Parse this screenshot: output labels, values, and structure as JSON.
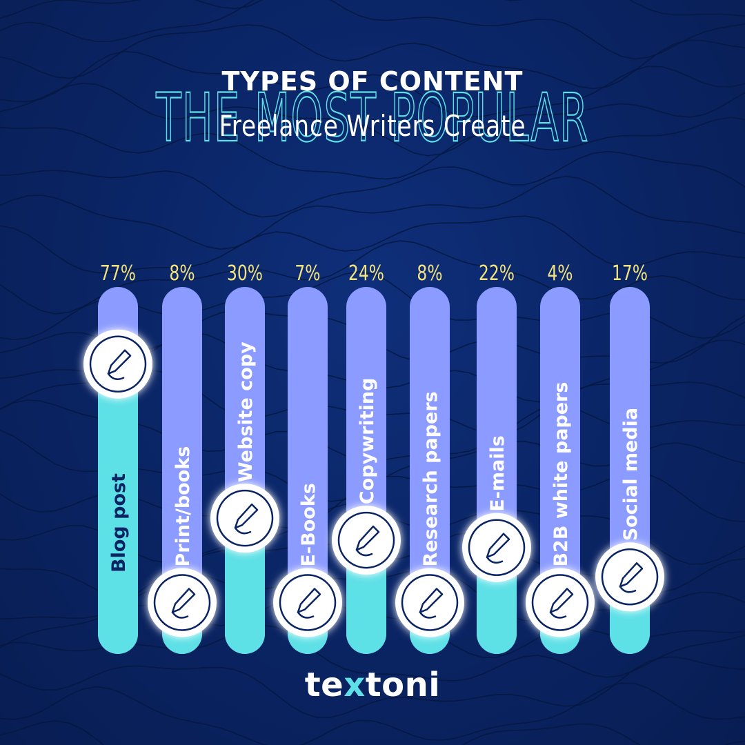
{
  "chart_data": {
    "type": "bar",
    "title": "THE MOST POPULAR",
    "subtitle_line1": "TYPES OF CONTENT",
    "subtitle_line2": "Freelance Writers Create",
    "categories": [
      "Blog post",
      "Print/books",
      "Website copy",
      "E-Books",
      "Copywriting",
      "Research papers",
      "E-mails",
      "B2B white papers",
      "Social media"
    ],
    "value_labels": [
      "77%",
      "8%",
      "30%",
      "7%",
      "24%",
      "8%",
      "22%",
      "4%",
      "17%"
    ],
    "values": [
      77,
      8,
      30,
      7,
      24,
      8,
      22,
      4,
      17
    ],
    "unit": "%",
    "ylim": [
      0,
      100
    ],
    "icon": "pencil-icon",
    "colors": {
      "background": "#0a2463",
      "bar_track": "#8b9bff",
      "bar_fill": "#5de0e6",
      "value_label": "#f3e37c",
      "title_accent": "#5de0e6",
      "text": "#ffffff",
      "category_label_on_track": "#ffffff",
      "category_label_on_fill": "#0a2463"
    }
  },
  "brand": {
    "logo_text_a": "te",
    "logo_text_x": "x",
    "logo_text_b": "toni"
  }
}
